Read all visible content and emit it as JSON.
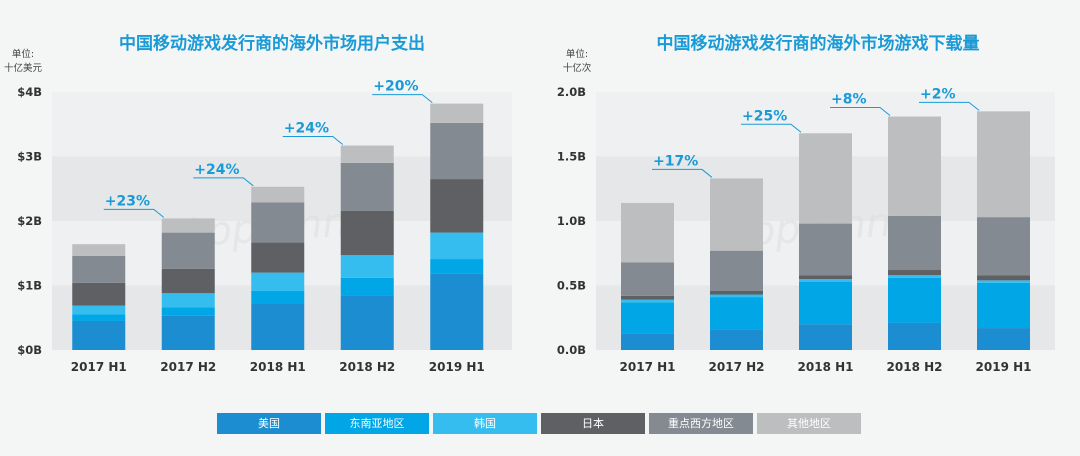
{
  "colors": {
    "series": [
      "#1b8dd0",
      "#00a6e5",
      "#34bdee",
      "#5e6063",
      "#838a91",
      "#bcbec0"
    ],
    "title": "#1a9bd7"
  },
  "legend": [
    "美国",
    "东南亚地区",
    "韩国",
    "日本",
    "重点西方地区",
    "其他地区"
  ],
  "watermark": "App Annie",
  "chart_data": [
    {
      "type": "bar",
      "stacked": true,
      "title": "中国移动游戏发行商的海外市场用户支出",
      "unit_line1": "单位:",
      "unit_line2": "十亿美元",
      "categories": [
        "2017 H1",
        "2017 H2",
        "2018 H1",
        "2018 H2",
        "2019 H1"
      ],
      "ylim": [
        0,
        4
      ],
      "yticks": [
        0,
        1,
        2,
        3,
        4
      ],
      "ytick_labels": [
        "$0B",
        "$1B",
        "$2B",
        "$3B",
        "$4B"
      ],
      "series": [
        {
          "name": "美国",
          "values": [
            0.45,
            0.53,
            0.72,
            0.85,
            1.19
          ]
        },
        {
          "name": "东南亚地区",
          "values": [
            0.1,
            0.13,
            0.2,
            0.27,
            0.22
          ]
        },
        {
          "name": "韩国",
          "values": [
            0.14,
            0.22,
            0.28,
            0.35,
            0.41
          ]
        },
        {
          "name": "日本",
          "values": [
            0.35,
            0.38,
            0.47,
            0.69,
            0.83
          ]
        },
        {
          "name": "重点西方地区",
          "values": [
            0.42,
            0.56,
            0.62,
            0.74,
            0.87
          ]
        },
        {
          "name": "其他地区",
          "values": [
            0.18,
            0.22,
            0.24,
            0.27,
            0.3
          ]
        }
      ],
      "annotations": [
        {
          "category": "2017 H2",
          "text": "+23%"
        },
        {
          "category": "2018 H1",
          "text": "+24%"
        },
        {
          "category": "2018 H2",
          "text": "+24%"
        },
        {
          "category": "2019 H1",
          "text": "+20%"
        }
      ]
    },
    {
      "type": "bar",
      "stacked": true,
      "title": "中国移动游戏发行商的海外市场游戏下载量",
      "unit_line1": "单位:",
      "unit_line2": "十亿次",
      "categories": [
        "2017 H1",
        "2017 H2",
        "2018 H1",
        "2018 H2",
        "2019 H1"
      ],
      "ylim": [
        0,
        2.0
      ],
      "yticks": [
        0,
        0.5,
        1.0,
        1.5,
        2.0
      ],
      "ytick_labels": [
        "0.0B",
        "0.5B",
        "1.0B",
        "1.5B",
        "2.0B"
      ],
      "series": [
        {
          "name": "美国",
          "values": [
            0.13,
            0.16,
            0.2,
            0.21,
            0.17
          ]
        },
        {
          "name": "东南亚地区",
          "values": [
            0.24,
            0.25,
            0.33,
            0.35,
            0.35
          ]
        },
        {
          "name": "韩国",
          "values": [
            0.02,
            0.02,
            0.02,
            0.02,
            0.02
          ]
        },
        {
          "name": "日本",
          "values": [
            0.03,
            0.03,
            0.03,
            0.04,
            0.04
          ]
        },
        {
          "name": "重点西方地区",
          "values": [
            0.26,
            0.31,
            0.4,
            0.42,
            0.45
          ]
        },
        {
          "name": "其他地区",
          "values": [
            0.46,
            0.56,
            0.7,
            0.77,
            0.82
          ]
        }
      ],
      "annotations": [
        {
          "category": "2017 H2",
          "text": "+17%"
        },
        {
          "category": "2018 H1",
          "text": "+25%"
        },
        {
          "category": "2018 H2",
          "text": "+8%"
        },
        {
          "category": "2019 H1",
          "text": "+2%"
        }
      ]
    }
  ]
}
